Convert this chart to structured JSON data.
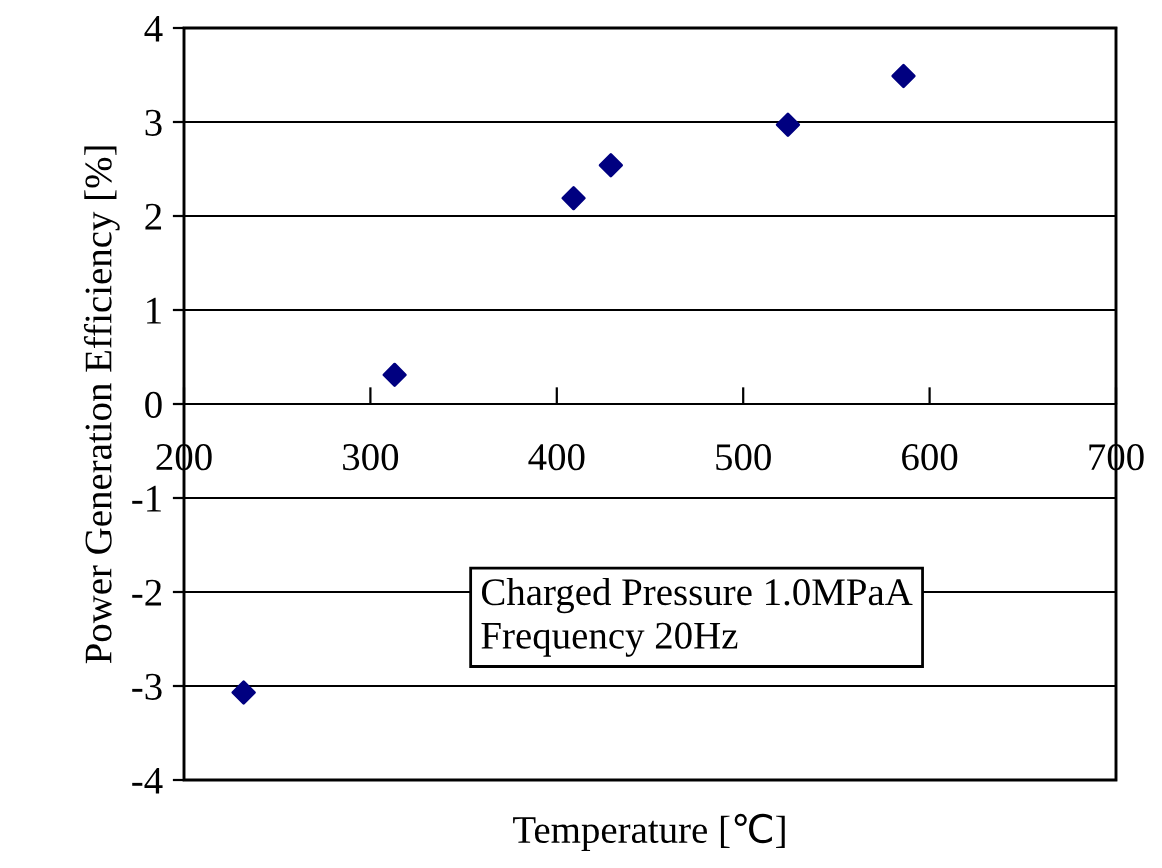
{
  "chart_data": {
    "type": "scatter",
    "xlabel": "Temperature [℃]",
    "ylabel": "Power Generation Efficiency [%]",
    "x": [
      232,
      313,
      409,
      429,
      524,
      586
    ],
    "series": [
      {
        "color": "#000080",
        "values": [
          -3.07,
          0.31,
          2.19,
          2.54,
          2.97,
          3.49
        ]
      }
    ],
    "marker": "diamond",
    "xlim": [
      200,
      700
    ],
    "xticks": [
      200,
      300,
      400,
      500,
      600,
      700
    ],
    "ylim": [
      -4,
      4
    ],
    "yticks": [
      -4,
      -3,
      -2,
      -1,
      0,
      1,
      2,
      3,
      4
    ],
    "grid": "y",
    "annotations": [
      "Charged Pressure 1.0MPaA\nFrequency 20Hz"
    ]
  }
}
